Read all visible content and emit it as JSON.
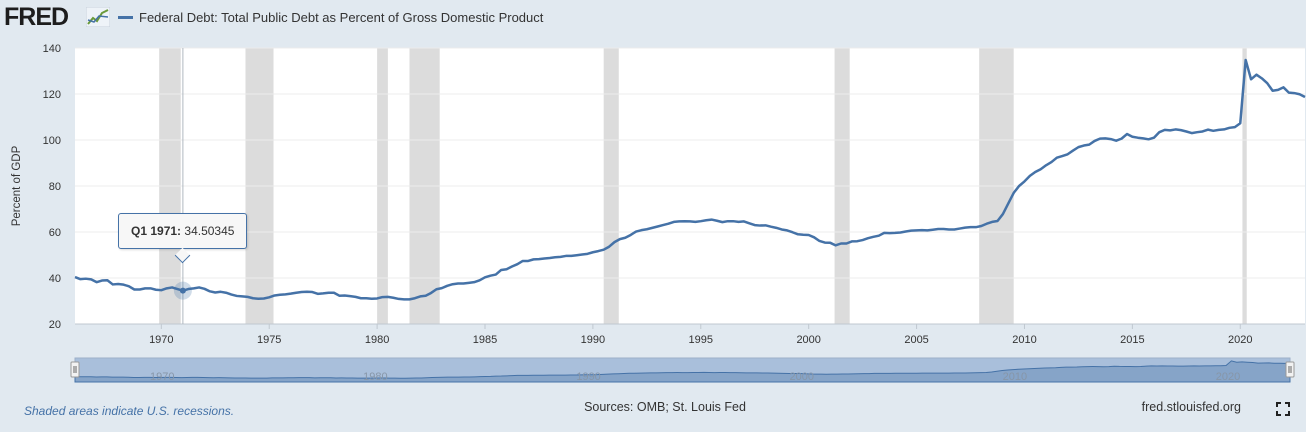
{
  "header": {
    "logo_text": "FRED",
    "logo_icon": "fred-line-chart-icon"
  },
  "chart_data": {
    "type": "line",
    "series": [
      {
        "name": "Federal Debt: Total Public Debt as Percent of Gross Domestic Product",
        "color": "#4572a7",
        "points": [
          [
            1966.0,
            40.4
          ],
          [
            1966.25,
            39.5
          ],
          [
            1966.5,
            39.7
          ],
          [
            1966.75,
            39.4
          ],
          [
            1967.0,
            38.2
          ],
          [
            1967.25,
            38.9
          ],
          [
            1967.5,
            39.0
          ],
          [
            1967.75,
            37.2
          ],
          [
            1968.0,
            37.4
          ],
          [
            1968.25,
            37.1
          ],
          [
            1968.5,
            36.4
          ],
          [
            1968.75,
            35.0
          ],
          [
            1969.0,
            35.0
          ],
          [
            1969.25,
            35.5
          ],
          [
            1969.5,
            35.5
          ],
          [
            1969.75,
            34.9
          ],
          [
            1970.0,
            34.7
          ],
          [
            1970.25,
            35.5
          ],
          [
            1970.5,
            35.9
          ],
          [
            1970.75,
            35.2
          ],
          [
            1971.0,
            34.50345
          ],
          [
            1971.25,
            35.2
          ],
          [
            1971.5,
            35.5
          ],
          [
            1971.75,
            35.9
          ],
          [
            1972.0,
            35.3
          ],
          [
            1972.25,
            34.2
          ],
          [
            1972.5,
            33.7
          ],
          [
            1972.75,
            34.0
          ],
          [
            1973.0,
            33.6
          ],
          [
            1973.25,
            32.8
          ],
          [
            1973.5,
            32.2
          ],
          [
            1973.75,
            32.0
          ],
          [
            1974.0,
            31.8
          ],
          [
            1974.25,
            31.2
          ],
          [
            1974.5,
            31.0
          ],
          [
            1974.75,
            31.1
          ],
          [
            1975.0,
            31.6
          ],
          [
            1975.25,
            32.4
          ],
          [
            1975.5,
            32.7
          ],
          [
            1975.75,
            32.9
          ],
          [
            1976.0,
            33.2
          ],
          [
            1976.25,
            33.6
          ],
          [
            1976.5,
            33.9
          ],
          [
            1976.75,
            34.0
          ],
          [
            1977.0,
            33.9
          ],
          [
            1977.25,
            33.1
          ],
          [
            1977.5,
            33.3
          ],
          [
            1977.75,
            33.6
          ],
          [
            1978.0,
            33.6
          ],
          [
            1978.25,
            32.3
          ],
          [
            1978.5,
            32.4
          ],
          [
            1978.75,
            32.1
          ],
          [
            1979.0,
            31.8
          ],
          [
            1979.25,
            31.2
          ],
          [
            1979.5,
            31.2
          ],
          [
            1979.75,
            31.0
          ],
          [
            1980.0,
            31.1
          ],
          [
            1980.25,
            31.7
          ],
          [
            1980.5,
            31.8
          ],
          [
            1980.75,
            31.4
          ],
          [
            1981.0,
            30.9
          ],
          [
            1981.25,
            30.7
          ],
          [
            1981.5,
            30.7
          ],
          [
            1981.75,
            31.2
          ],
          [
            1982.0,
            32.0
          ],
          [
            1982.25,
            32.3
          ],
          [
            1982.5,
            33.5
          ],
          [
            1982.75,
            35.1
          ],
          [
            1983.0,
            35.6
          ],
          [
            1983.25,
            36.6
          ],
          [
            1983.5,
            37.3
          ],
          [
            1983.75,
            37.6
          ],
          [
            1984.0,
            37.6
          ],
          [
            1984.25,
            37.9
          ],
          [
            1984.5,
            38.2
          ],
          [
            1984.75,
            39.0
          ],
          [
            1985.0,
            40.3
          ],
          [
            1985.25,
            41.0
          ],
          [
            1985.5,
            41.5
          ],
          [
            1985.75,
            43.5
          ],
          [
            1986.0,
            43.8
          ],
          [
            1986.25,
            45.0
          ],
          [
            1986.5,
            46.0
          ],
          [
            1986.75,
            47.4
          ],
          [
            1987.0,
            47.4
          ],
          [
            1987.25,
            48.1
          ],
          [
            1987.5,
            48.2
          ],
          [
            1987.75,
            48.5
          ],
          [
            1988.0,
            48.7
          ],
          [
            1988.25,
            49.0
          ],
          [
            1988.5,
            49.2
          ],
          [
            1988.75,
            49.6
          ],
          [
            1989.0,
            49.6
          ],
          [
            1989.25,
            49.9
          ],
          [
            1989.5,
            50.2
          ],
          [
            1989.75,
            50.5
          ],
          [
            1990.0,
            51.2
          ],
          [
            1990.25,
            51.7
          ],
          [
            1990.5,
            52.3
          ],
          [
            1990.75,
            53.6
          ],
          [
            1991.0,
            55.6
          ],
          [
            1991.25,
            56.9
          ],
          [
            1991.5,
            57.5
          ],
          [
            1991.75,
            58.7
          ],
          [
            1992.0,
            60.2
          ],
          [
            1992.25,
            60.8
          ],
          [
            1992.5,
            61.2
          ],
          [
            1992.75,
            61.8
          ],
          [
            1993.0,
            62.4
          ],
          [
            1993.25,
            63.0
          ],
          [
            1993.5,
            63.6
          ],
          [
            1993.75,
            64.4
          ],
          [
            1994.0,
            64.6
          ],
          [
            1994.25,
            64.7
          ],
          [
            1994.5,
            64.6
          ],
          [
            1994.75,
            64.4
          ],
          [
            1995.0,
            64.7
          ],
          [
            1995.25,
            65.1
          ],
          [
            1995.5,
            65.4
          ],
          [
            1995.75,
            64.9
          ],
          [
            1996.0,
            64.3
          ],
          [
            1996.25,
            64.7
          ],
          [
            1996.5,
            64.7
          ],
          [
            1996.75,
            64.4
          ],
          [
            1997.0,
            64.6
          ],
          [
            1997.25,
            63.8
          ],
          [
            1997.5,
            63.0
          ],
          [
            1997.75,
            62.8
          ],
          [
            1998.0,
            62.9
          ],
          [
            1998.25,
            62.3
          ],
          [
            1998.5,
            61.8
          ],
          [
            1998.75,
            61.1
          ],
          [
            1999.0,
            60.7
          ],
          [
            1999.25,
            59.9
          ],
          [
            1999.5,
            59.0
          ],
          [
            1999.75,
            58.8
          ],
          [
            2000.0,
            58.7
          ],
          [
            2000.25,
            57.7
          ],
          [
            2000.5,
            56.1
          ],
          [
            2000.75,
            55.4
          ],
          [
            2001.0,
            55.3
          ],
          [
            2001.25,
            54.2
          ],
          [
            2001.5,
            55.0
          ],
          [
            2001.75,
            55.0
          ],
          [
            2002.0,
            55.9
          ],
          [
            2002.25,
            56.0
          ],
          [
            2002.5,
            56.5
          ],
          [
            2002.75,
            57.3
          ],
          [
            2003.0,
            57.9
          ],
          [
            2003.25,
            58.4
          ],
          [
            2003.5,
            59.6
          ],
          [
            2003.75,
            59.5
          ],
          [
            2004.0,
            59.6
          ],
          [
            2004.25,
            59.8
          ],
          [
            2004.5,
            60.2
          ],
          [
            2004.75,
            60.6
          ],
          [
            2005.0,
            60.7
          ],
          [
            2005.25,
            60.8
          ],
          [
            2005.5,
            60.7
          ],
          [
            2005.75,
            61.0
          ],
          [
            2006.0,
            61.3
          ],
          [
            2006.25,
            61.3
          ],
          [
            2006.5,
            61.1
          ],
          [
            2006.75,
            61.1
          ],
          [
            2007.0,
            61.5
          ],
          [
            2007.25,
            61.9
          ],
          [
            2007.5,
            62.1
          ],
          [
            2007.75,
            62.1
          ],
          [
            2008.0,
            62.6
          ],
          [
            2008.25,
            63.6
          ],
          [
            2008.5,
            64.4
          ],
          [
            2008.75,
            64.8
          ],
          [
            2009.0,
            67.8
          ],
          [
            2009.25,
            72.4
          ],
          [
            2009.5,
            77.0
          ],
          [
            2009.75,
            80.0
          ],
          [
            2010.0,
            82.0
          ],
          [
            2010.25,
            84.4
          ],
          [
            2010.5,
            86.1
          ],
          [
            2010.75,
            87.3
          ],
          [
            2011.0,
            89.0
          ],
          [
            2011.25,
            90.4
          ],
          [
            2011.5,
            92.3
          ],
          [
            2011.75,
            93.0
          ],
          [
            2012.0,
            93.8
          ],
          [
            2012.25,
            95.4
          ],
          [
            2012.5,
            96.9
          ],
          [
            2012.75,
            97.6
          ],
          [
            2013.0,
            98.0
          ],
          [
            2013.25,
            99.6
          ],
          [
            2013.5,
            100.6
          ],
          [
            2013.75,
            100.7
          ],
          [
            2014.0,
            100.4
          ],
          [
            2014.25,
            99.7
          ],
          [
            2014.5,
            100.6
          ],
          [
            2014.75,
            102.6
          ],
          [
            2015.0,
            101.4
          ],
          [
            2015.25,
            101.0
          ],
          [
            2015.5,
            100.7
          ],
          [
            2015.75,
            100.3
          ],
          [
            2016.0,
            101.0
          ],
          [
            2016.25,
            103.4
          ],
          [
            2016.5,
            104.4
          ],
          [
            2016.75,
            104.2
          ],
          [
            2017.0,
            104.6
          ],
          [
            2017.25,
            104.3
          ],
          [
            2017.5,
            103.7
          ],
          [
            2017.75,
            103.0
          ],
          [
            2018.0,
            103.4
          ],
          [
            2018.25,
            103.7
          ],
          [
            2018.5,
            104.5
          ],
          [
            2018.75,
            104.0
          ],
          [
            2019.0,
            104.4
          ],
          [
            2019.25,
            104.6
          ],
          [
            2019.5,
            105.3
          ],
          [
            2019.75,
            105.6
          ],
          [
            2020.0,
            107.3
          ],
          [
            2020.25,
            134.8
          ],
          [
            2020.5,
            126.4
          ],
          [
            2020.75,
            128.4
          ],
          [
            2021.0,
            126.8
          ],
          [
            2021.25,
            124.7
          ],
          [
            2021.5,
            121.4
          ],
          [
            2021.75,
            121.8
          ],
          [
            2022.0,
            122.9
          ],
          [
            2022.25,
            120.6
          ],
          [
            2022.5,
            120.4
          ],
          [
            2022.75,
            119.9
          ],
          [
            2023.0,
            118.7
          ]
        ]
      }
    ],
    "recessions": [
      [
        1969.9,
        1970.9
      ],
      [
        1973.9,
        1975.2
      ],
      [
        1980.0,
        1980.5
      ],
      [
        1981.5,
        1982.9
      ],
      [
        1990.5,
        1991.2
      ],
      [
        2001.2,
        2001.9
      ],
      [
        2007.9,
        2009.5
      ],
      [
        2020.1,
        2020.3
      ]
    ],
    "y_range": [
      20,
      140
    ],
    "y_ticks": [
      "140",
      "120",
      "100",
      "80",
      "60",
      "40",
      "20"
    ],
    "x_range": [
      1966,
      2023
    ],
    "x_ticks": [
      "1970",
      "1975",
      "1980",
      "1985",
      "1990",
      "1995",
      "2000",
      "2005",
      "2010",
      "2015",
      "2020"
    ],
    "navigator_ticks": [
      "1970",
      "1980",
      "1990",
      "2000",
      "2010",
      "2020"
    ],
    "ylabel": "Percent of GDP",
    "tooltip": {
      "period": "Q1 1971",
      "value": "34.50345",
      "year": 1971.0
    }
  },
  "footer": {
    "note": "Shaded areas indicate U.S. recessions.",
    "sources": "Sources: OMB; St. Louis Fed",
    "site": "fred.stlouisfed.org"
  },
  "colors": {
    "line": "#4572a7",
    "recession": "#dcdcdc",
    "background": "#e1e9f0"
  }
}
